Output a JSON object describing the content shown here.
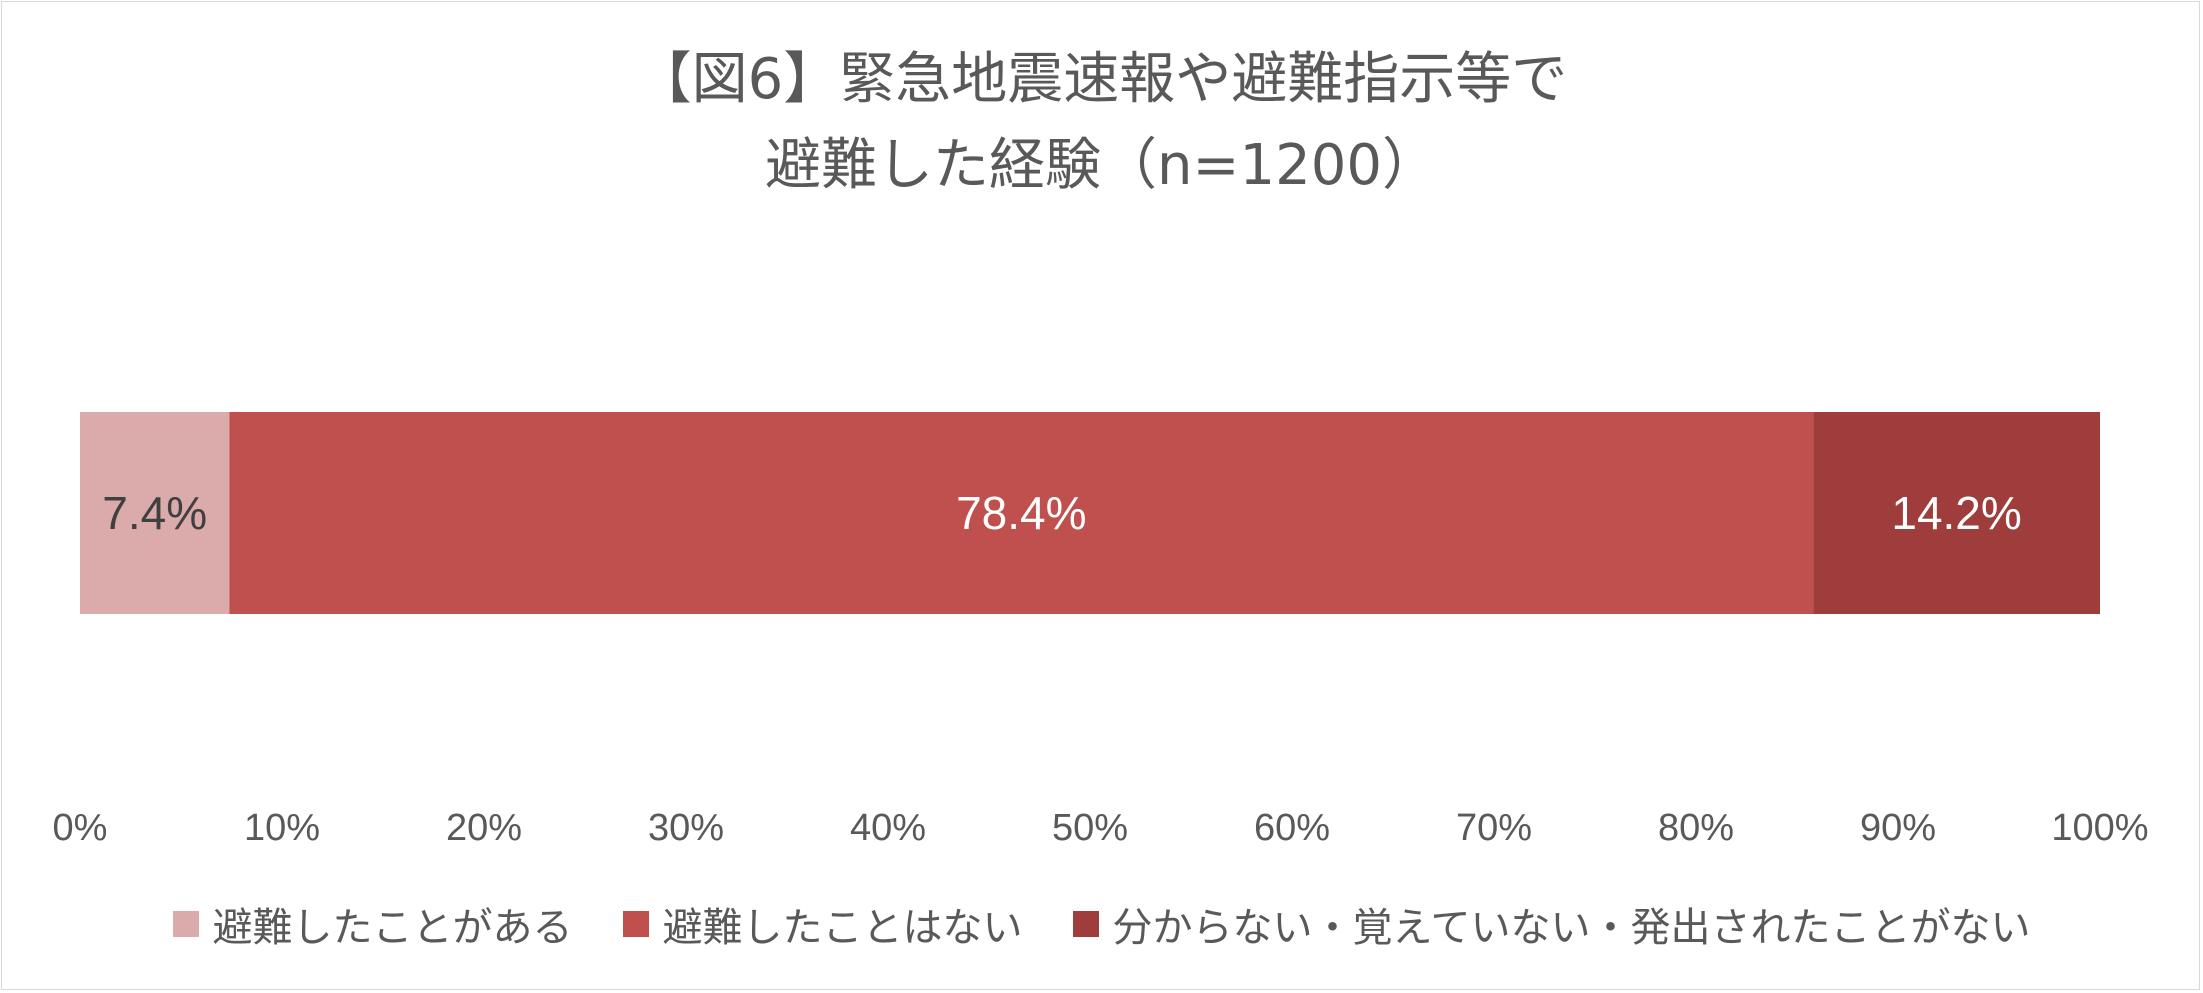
{
  "chart_data": {
    "type": "bar",
    "orientation": "horizontal-stacked",
    "title": [
      "【図6】緊急地震速報や避難指示等で",
      "避難した経験（n=1200）"
    ],
    "series": [
      {
        "name": "避難したことがある",
        "value": 7.4,
        "label": "7.4%",
        "color": "#dbabab",
        "label_color": "#404040"
      },
      {
        "name": "避難したことはない",
        "value": 78.4,
        "label": "78.4%",
        "color": "#c0504d",
        "label_color": "#ffffff"
      },
      {
        "name": "分からない・覚えていない・発出されたことがない",
        "value": 14.2,
        "label": "14.2%",
        "color": "#9e3d3b",
        "label_color": "#ffffff"
      }
    ],
    "xlim": [
      0,
      100
    ],
    "xticks": [
      "0%",
      "10%",
      "20%",
      "30%",
      "40%",
      "50%",
      "60%",
      "70%",
      "80%",
      "90%",
      "100%"
    ],
    "grid": false,
    "legend_position": "bottom"
  }
}
